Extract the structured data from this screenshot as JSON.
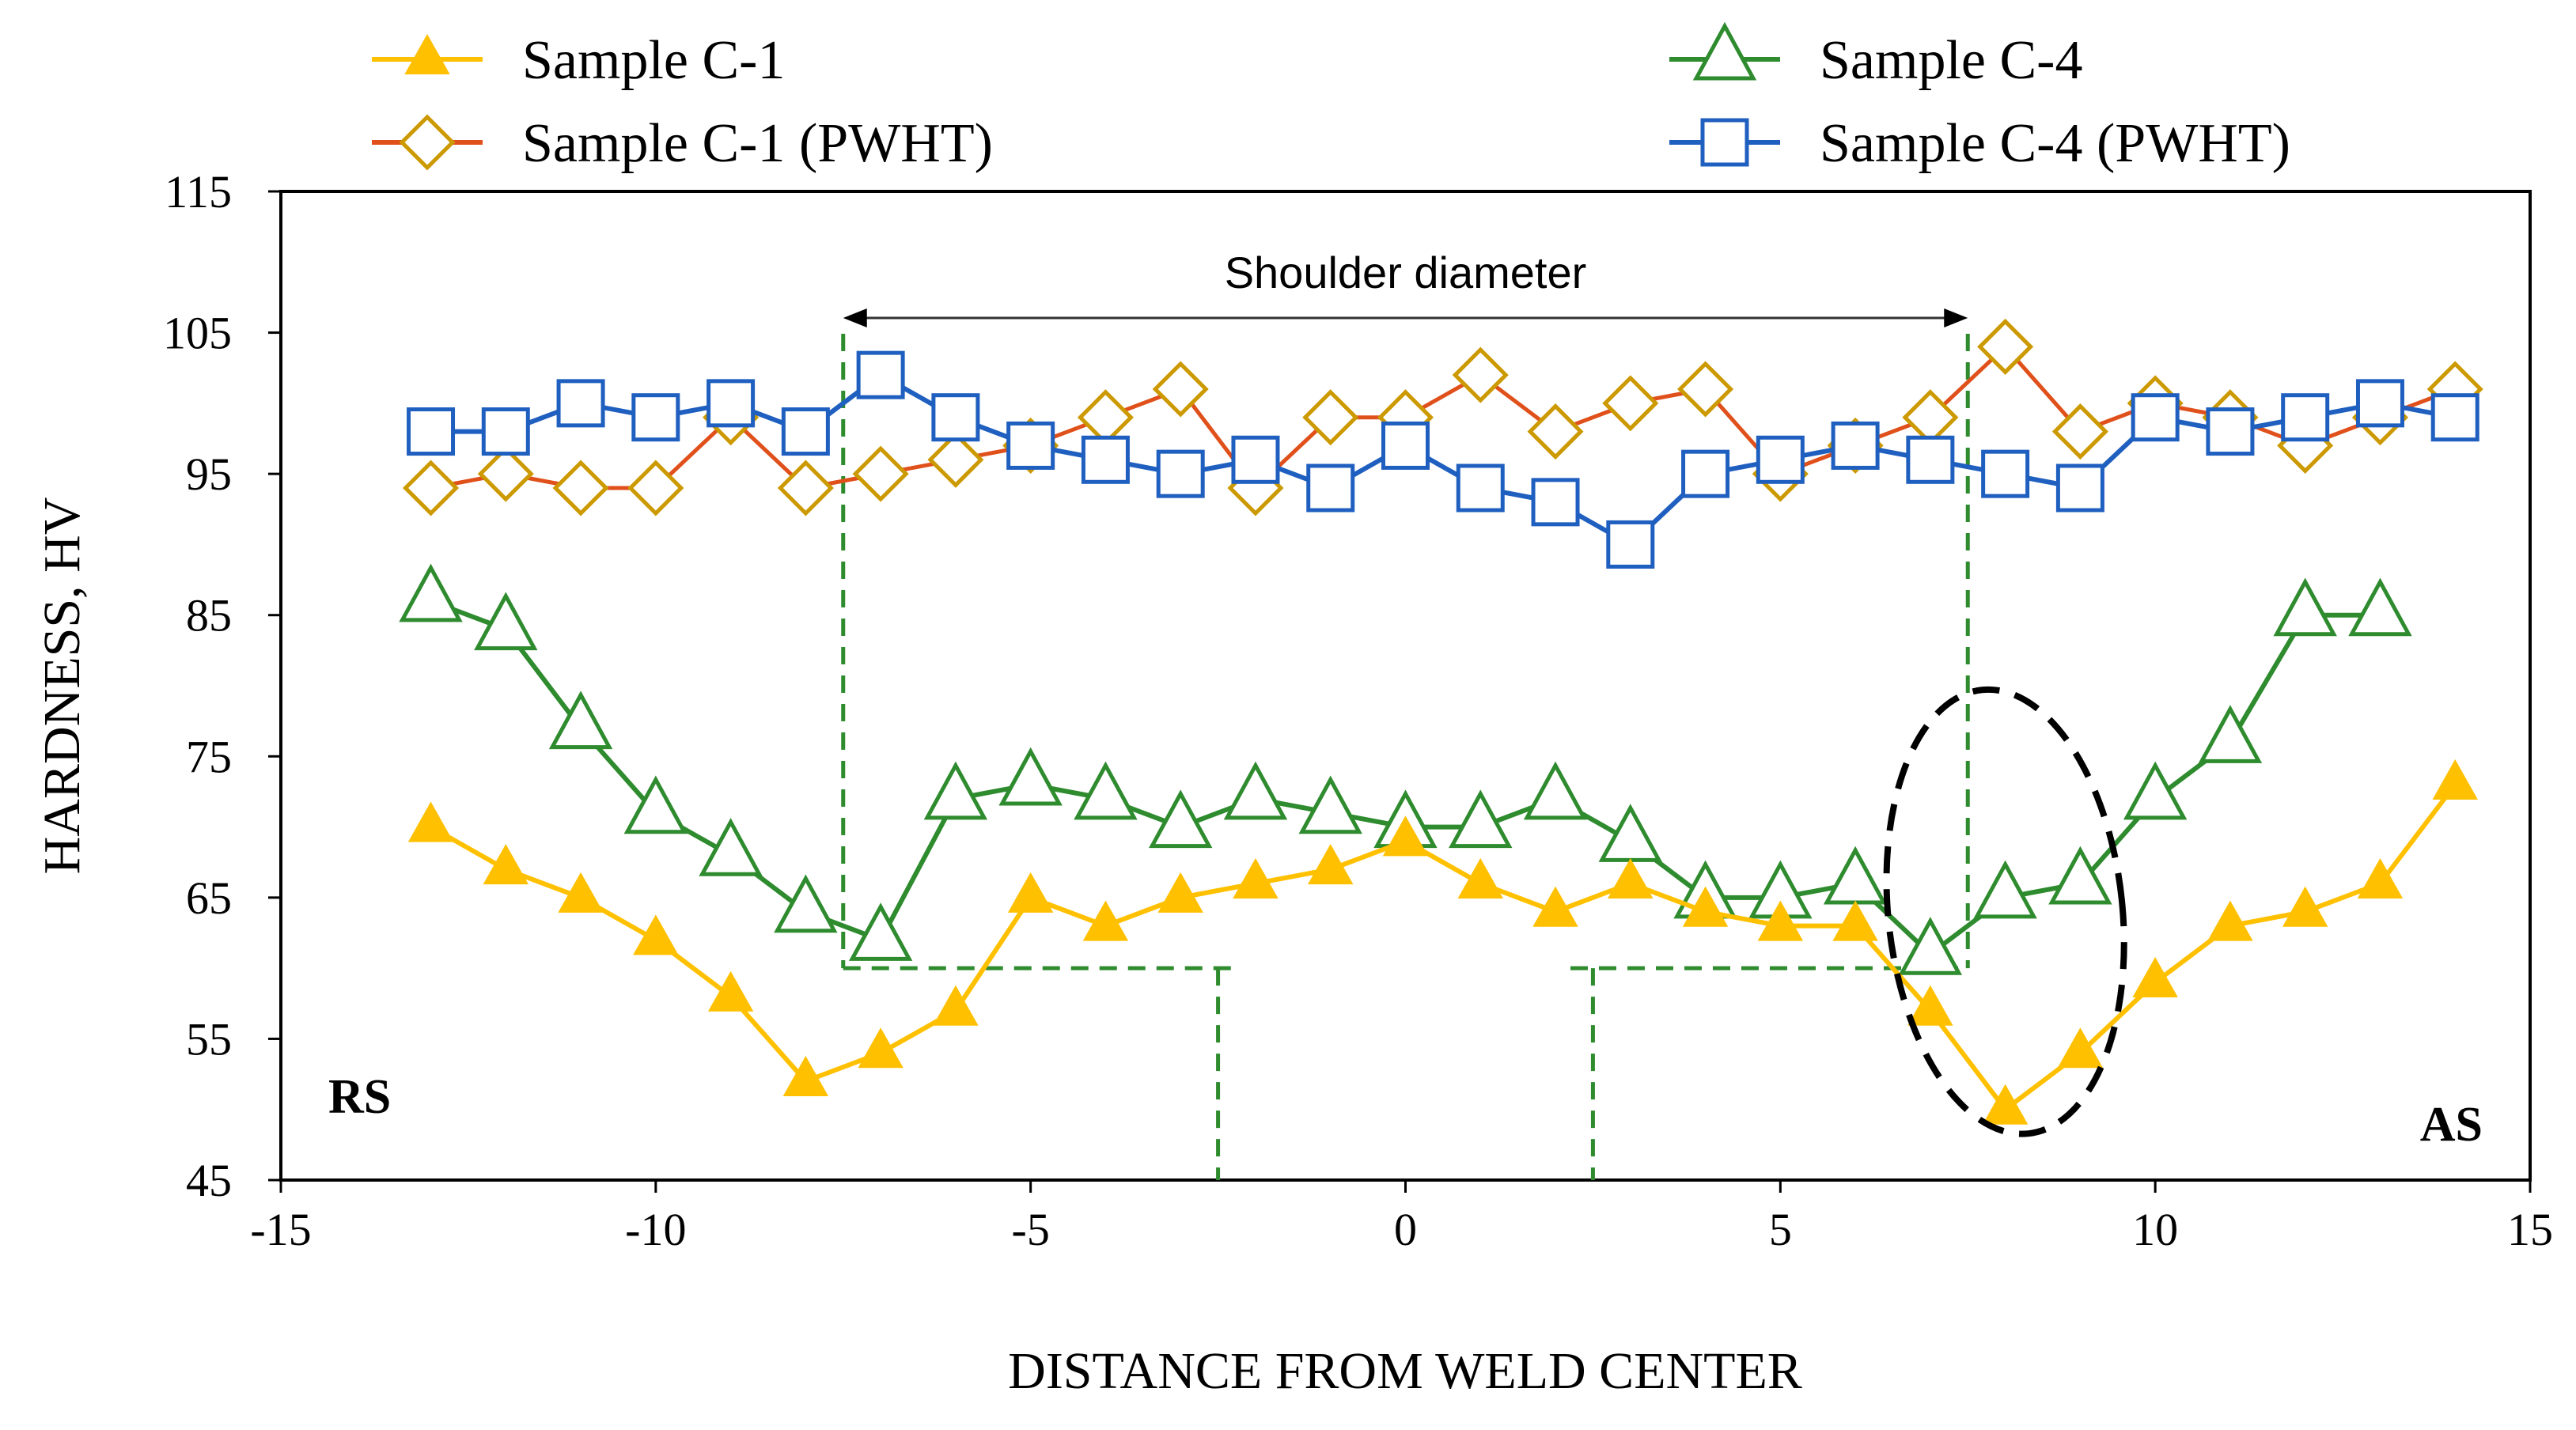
{
  "chart_data": {
    "type": "line",
    "title": "",
    "xlabel": "DISTANCE FROM WELD CENTER",
    "ylabel": "HARDNESS, HV",
    "xlim": [
      -15,
      15
    ],
    "ylim": [
      45,
      115
    ],
    "xticks": [
      -15,
      -10,
      -5,
      0,
      5,
      10,
      15
    ],
    "yticks": [
      45,
      55,
      65,
      75,
      85,
      95,
      105,
      115
    ],
    "grid": false,
    "legend_position": "top",
    "series": [
      {
        "name": "Sample C-1",
        "color": "#ffc000",
        "marker": "filled-triangle",
        "x": [
          -13,
          -12,
          -11,
          -10,
          -9,
          -8,
          -7,
          -6,
          -5,
          -4,
          -3,
          -2,
          -1,
          0,
          1,
          2,
          3,
          4,
          5,
          6,
          7,
          8,
          9,
          10,
          11,
          12,
          13,
          14
        ],
        "y": [
          70,
          67,
          65,
          62,
          58,
          52,
          54,
          57,
          65,
          63,
          65,
          66,
          67,
          69,
          66,
          64,
          66,
          64,
          63,
          63,
          57,
          50,
          54,
          59,
          63,
          64,
          66,
          73
        ]
      },
      {
        "name": "Sample C-1 (PWHT)",
        "color": "#cc9900",
        "line_color": "#e0501b",
        "marker": "open-diamond",
        "x": [
          -13,
          -12,
          -11,
          -10,
          -9,
          -8,
          -7,
          -6,
          -5,
          -4,
          -3,
          -2,
          -1,
          0,
          1,
          2,
          3,
          4,
          5,
          6,
          7,
          8,
          9,
          10,
          11,
          12,
          13,
          14
        ],
        "y": [
          94,
          95,
          94,
          94,
          99,
          94,
          95,
          96,
          97,
          99,
          101,
          94,
          99,
          99,
          102,
          98,
          100,
          101,
          95,
          97,
          99,
          104,
          98,
          100,
          99,
          97,
          99,
          101
        ]
      },
      {
        "name": "Sample C-4",
        "color": "#2e8b2e",
        "marker": "open-triangle",
        "x": [
          -13,
          -12,
          -11,
          -10,
          -9,
          -8,
          -7,
          -6,
          -5,
          -4,
          -3,
          -2,
          -1,
          0,
          1,
          2,
          3,
          4,
          5,
          6,
          7,
          8,
          9,
          10,
          11,
          12,
          13
        ],
        "y": [
          86,
          84,
          77,
          71,
          68,
          64,
          62,
          72,
          73,
          72,
          70,
          72,
          71,
          70,
          70,
          72,
          69,
          65,
          65,
          66,
          61,
          65,
          66,
          72,
          76,
          85,
          85
        ]
      },
      {
        "name": "Sample C-4 (PWHT)",
        "color": "#1f5fbf",
        "marker": "open-square",
        "x": [
          -13,
          -12,
          -11,
          -10,
          -9,
          -8,
          -7,
          -6,
          -5,
          -4,
          -3,
          -2,
          -1,
          0,
          1,
          2,
          3,
          4,
          5,
          6,
          7,
          8,
          9,
          10,
          11,
          12,
          13,
          14
        ],
        "y": [
          98,
          98,
          100,
          99,
          100,
          98,
          102,
          99,
          97,
          96,
          95,
          96,
          94,
          97,
          94,
          93,
          90,
          95,
          96,
          97,
          96,
          95,
          94,
          99,
          98,
          99,
          100,
          99
        ]
      }
    ],
    "annotations": {
      "shoulder_label": "Shoulder diameter",
      "shoulder_range": [
        -7.5,
        7.5
      ],
      "pin_zone": [
        -2.5,
        2.5
      ],
      "zone_floor_y": 60,
      "left_side_label": "RS",
      "right_side_label": "AS",
      "highlight_center": [
        8,
        64
      ]
    },
    "zone_color": "#2e8b2e"
  }
}
